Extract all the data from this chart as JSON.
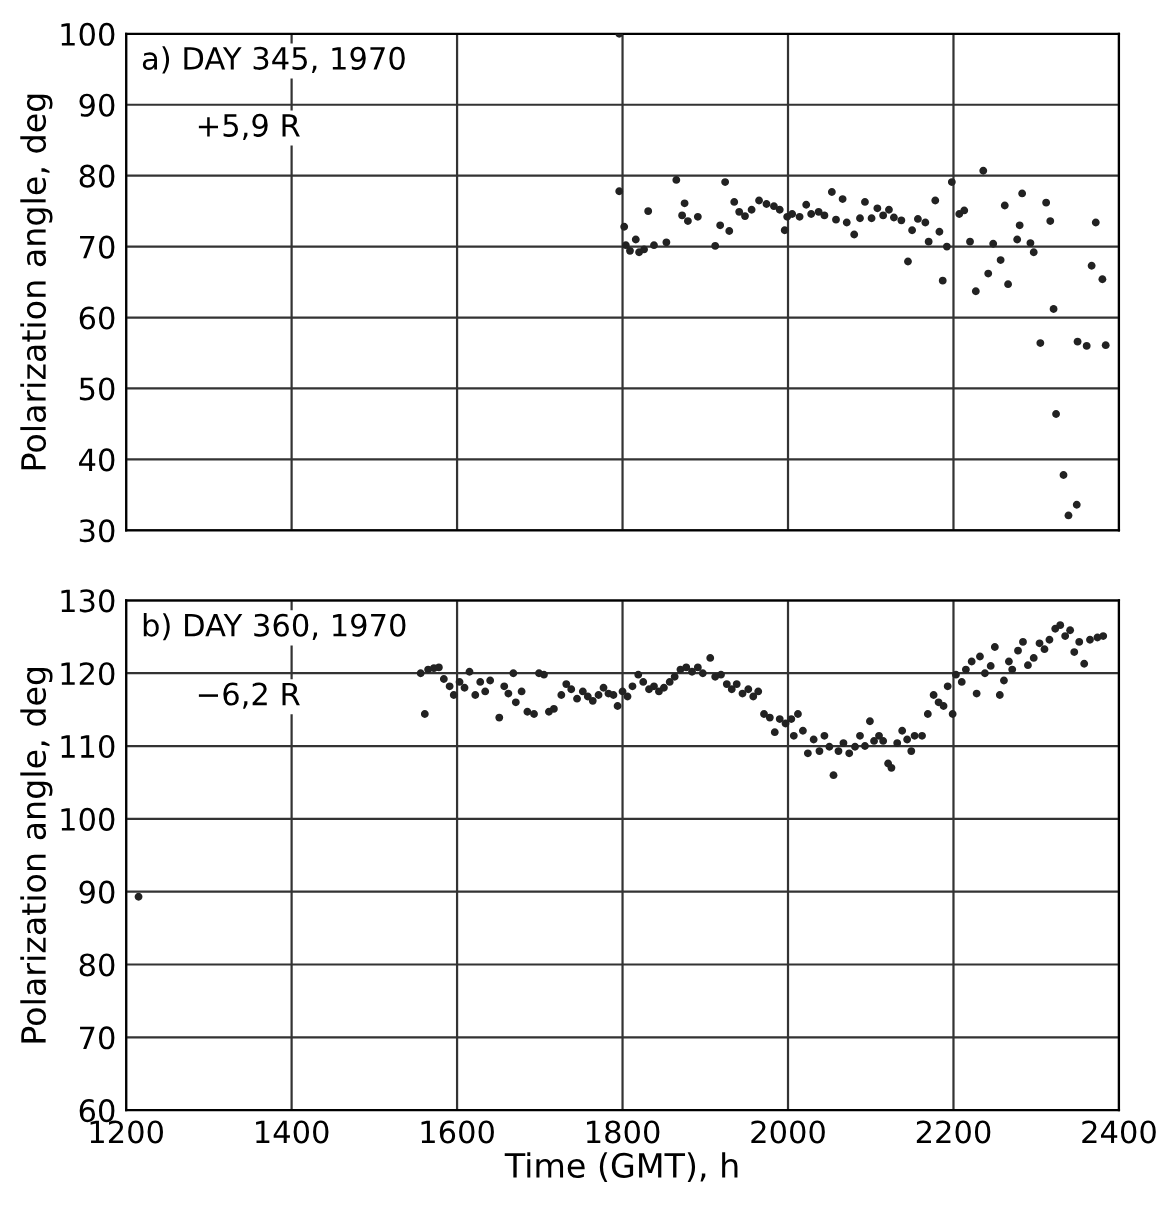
{
  "chart_data": [
    {
      "type": "scatter",
      "ylabel": "Polarization angle, deg",
      "annotations": [
        "a) DAY 345, 1970",
        "+5,9 R"
      ],
      "xlim": [
        1200,
        2400
      ],
      "xticks": [
        1200,
        1400,
        1600,
        1800,
        2000,
        2200,
        2400
      ],
      "ylim": [
        30,
        100
      ],
      "yticks": [
        30,
        40,
        50,
        60,
        70,
        80,
        90,
        100
      ],
      "grid": true,
      "marker": "circle",
      "tick_labels": "y",
      "series": [
        {
          "color": "#222222",
          "x": [
            1796,
            1796,
            1802,
            1804,
            1809,
            1816,
            1820,
            1826,
            1831,
            1838,
            1853,
            1865,
            1875,
            1872,
            1879,
            1891,
            1912,
            1918,
            1924,
            1929,
            1935,
            1941,
            1948,
            1956,
            1965,
            1974,
            1983,
            1990,
            1996,
            1999,
            2005,
            2014,
            2022,
            2028,
            2037,
            2044,
            2053,
            2058,
            2066,
            2071,
            2080,
            2087,
            2093,
            2101,
            2108,
            2115,
            2122,
            2128,
            2137,
            2145,
            2150,
            2157,
            2166,
            2170,
            2178,
            2183,
            2187,
            2192,
            2198,
            2207,
            2213,
            2220,
            2227,
            2236,
            2242,
            2248,
            2257,
            2262,
            2266,
            2277,
            2280,
            2283,
            2293,
            2297,
            2305,
            2312,
            2317,
            2321,
            2324,
            2333,
            2339,
            2349,
            2350,
            2361,
            2367,
            2372,
            2380,
            2384
          ],
          "values": [
            100,
            77.8,
            72.8,
            70.2,
            69.4,
            71,
            69.2,
            69.6,
            75,
            70.2,
            70.6,
            79.4,
            76.1,
            74.4,
            73.6,
            74.2,
            70.1,
            73,
            79.1,
            72.2,
            76.3,
            74.9,
            74.3,
            75.2,
            76.5,
            76,
            75.7,
            75.2,
            72.3,
            74.2,
            74.6,
            74.2,
            75.9,
            74.6,
            74.9,
            74.4,
            77.7,
            73.8,
            76.7,
            73.4,
            71.7,
            74,
            76.3,
            74,
            75.4,
            74.4,
            75.2,
            74.1,
            73.7,
            67.9,
            72.3,
            73.9,
            73.4,
            70.7,
            76.5,
            72.1,
            65.2,
            70,
            79.1,
            74.6,
            75.1,
            70.7,
            63.7,
            80.7,
            66.2,
            70.4,
            68.1,
            75.8,
            64.7,
            71,
            73,
            77.5,
            70.5,
            69.2,
            56.4,
            76.2,
            73.6,
            61.2,
            46.4,
            37.8,
            32.1,
            33.6,
            56.6,
            56,
            67.3,
            73.4,
            65.4,
            56.1
          ]
        }
      ]
    },
    {
      "type": "scatter",
      "xlabel": "Time (GMT), h",
      "ylabel": "Polarization angle, deg",
      "annotations": [
        "b) DAY 360, 1970",
        "−6,2 R"
      ],
      "xlim": [
        1200,
        2400
      ],
      "xticks": [
        1200,
        1400,
        1600,
        1800,
        2000,
        2200,
        2400
      ],
      "ylim": [
        60,
        130
      ],
      "yticks": [
        60,
        70,
        80,
        90,
        100,
        110,
        120,
        130
      ],
      "grid": true,
      "marker": "circle",
      "series": [
        {
          "color": "#222222",
          "x": [
            1215,
            1556,
            1561,
            1565,
            1572,
            1578,
            1584,
            1591,
            1596,
            1603,
            1609,
            1615,
            1622,
            1628,
            1634,
            1640,
            1651,
            1657,
            1662,
            1668,
            1671,
            1678,
            1685,
            1693,
            1699,
            1705,
            1711,
            1717,
            1726,
            1732,
            1738,
            1745,
            1752,
            1758,
            1764,
            1771,
            1777,
            1783,
            1789,
            1794,
            1800,
            1806,
            1812,
            1819,
            1825,
            1832,
            1838,
            1844,
            1850,
            1857,
            1863,
            1870,
            1877,
            1884,
            1891,
            1897,
            1906,
            1912,
            1919,
            1926,
            1932,
            1938,
            1945,
            1952,
            1958,
            1964,
            1971,
            1978,
            1984,
            1990,
            1997,
            2004,
            2007,
            2012,
            2018,
            2024,
            2031,
            2038,
            2044,
            2050,
            2055,
            2061,
            2067,
            2074,
            2081,
            2087,
            2093,
            2099,
            2104,
            2110,
            2115,
            2121,
            2125,
            2132,
            2138,
            2144,
            2149,
            2153,
            2162,
            2169,
            2176,
            2182,
            2188,
            2193,
            2199,
            2203,
            2210,
            2215,
            2222,
            2228,
            2232,
            2238,
            2245,
            2250,
            2256,
            2261,
            2267,
            2271,
            2278,
            2284,
            2290,
            2297,
            2304,
            2310,
            2316,
            2323,
            2329,
            2335,
            2341,
            2346,
            2352,
            2358,
            2365,
            2374,
            2381
          ],
          "values": [
            89.3,
            120,
            114.4,
            120.5,
            120.7,
            120.8,
            119.2,
            118.2,
            117,
            118.8,
            118,
            120.2,
            117,
            118.8,
            117.5,
            119,
            113.9,
            118.2,
            117.2,
            120,
            116,
            117.5,
            114.7,
            114.4,
            120,
            119.8,
            114.7,
            115.1,
            117,
            118.5,
            117.8,
            116.5,
            117.5,
            116.8,
            116.2,
            117,
            118,
            117.2,
            117,
            115.5,
            117.5,
            116.8,
            118.2,
            119.8,
            118.8,
            117.8,
            118.2,
            117.5,
            118,
            118.8,
            119.5,
            120.5,
            120.8,
            120.2,
            120.8,
            120,
            122.1,
            119.5,
            119.8,
            118.5,
            117.8,
            118.5,
            117.2,
            117.8,
            116.8,
            117.5,
            114.4,
            113.9,
            111.9,
            113.7,
            113.1,
            113.7,
            111.4,
            114.4,
            112.1,
            109,
            110.9,
            109.3,
            111.4,
            109.9,
            106,
            109.3,
            110.4,
            109,
            109.9,
            111.4,
            110,
            113.4,
            110.7,
            111.4,
            110.7,
            107.6,
            107,
            110.4,
            112.1,
            110.9,
            109.3,
            111.4,
            111.4,
            114.4,
            117,
            116,
            115.5,
            118.2,
            114.4,
            119.8,
            118.8,
            120.5,
            121.6,
            117.2,
            122.3,
            120,
            121,
            123.6,
            117,
            119,
            121.6,
            120.5,
            123.1,
            124.3,
            121.1,
            122.1,
            124.1,
            123.3,
            124.6,
            126.1,
            126.6,
            125.1,
            125.9,
            122.9,
            124.3,
            121.3,
            124.6,
            124.9,
            125.1
          ]
        }
      ]
    }
  ]
}
